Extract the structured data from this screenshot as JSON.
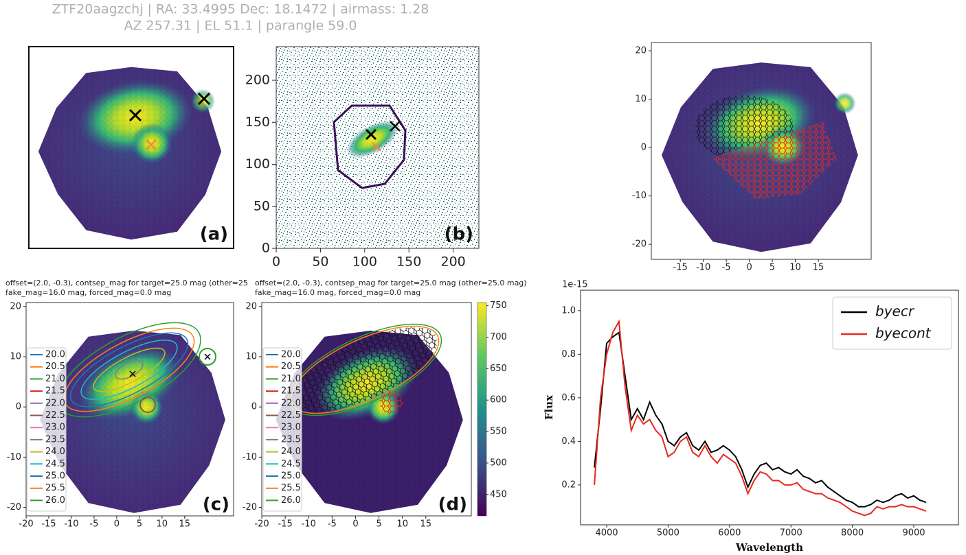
{
  "header": {
    "line1": "ZTF20aagzchj | RA: 33.4995 Dec: 18.1472 | airmass: 1.28",
    "line2": "AZ 257.31 | EL 51.1 | parangle 59.0"
  },
  "chart_data": [
    {
      "type": "image",
      "label": "(a)"
    },
    {
      "type": "image",
      "label": "(b)",
      "xlim": [
        0,
        229
      ],
      "ylim": [
        0,
        240
      ],
      "xticks": [
        0,
        50,
        100,
        150,
        200
      ],
      "yticks": [
        0,
        50,
        100,
        150,
        200
      ]
    },
    {
      "type": "contour",
      "label": "(c)",
      "title": "offset=(2.0, -0.3), contsep_mag for target=25.0 mag (other=25",
      "subtitle": "fake_mag=16.0 mag, forced_mag=0.0 mag",
      "xlim": [
        -20,
        25.8
      ],
      "ylim": [
        -21.7,
        20.8
      ],
      "xticks": [
        -20,
        -15,
        -10,
        -5,
        0,
        5,
        10,
        15
      ],
      "yticks": [
        -20,
        -10,
        0,
        10,
        20
      ],
      "levels": [
        "20.0",
        "20.5",
        "21.0",
        "21.5",
        "22.0",
        "22.5",
        "23.0",
        "23.5",
        "24.0",
        "24.5",
        "25.0",
        "25.5",
        "26.0"
      ],
      "level_colors": [
        "#1f77b4",
        "#ff7f0e",
        "#2ca02c",
        "#d62728",
        "#9467bd",
        "#8c564b",
        "#e377c2",
        "#7f7f7f",
        "#bcbd22",
        "#17becf",
        "#1f77b4",
        "#ff7f0e",
        "#2ca02c"
      ]
    },
    {
      "type": "contour",
      "label": "(d)",
      "title": "offset=(2.0, -0.3), contsep_mag for target=25.0 mag (other=25.0 mag)",
      "subtitle": "fake_mag=16.0 mag, forced_mag=0.0 mag",
      "xlim": [
        -20,
        24.7
      ],
      "ylim": [
        -21.7,
        20.8
      ],
      "xticks": [
        -20,
        -15,
        -10,
        -5,
        0,
        5,
        10,
        15
      ],
      "yticks": [
        -20,
        -10,
        0,
        10,
        20
      ],
      "levels": [
        "20.0",
        "20.5",
        "21.0",
        "21.5",
        "22.0",
        "22.5",
        "23.0",
        "23.5",
        "24.0",
        "24.5",
        "25.0",
        "25.5",
        "26.0"
      ],
      "level_colors": [
        "#1f77b4",
        "#ff7f0e",
        "#2ca02c",
        "#d62728",
        "#9467bd",
        "#8c564b",
        "#e377c2",
        "#7f7f7f",
        "#bcbd22",
        "#17becf",
        "#1f77b4",
        "#ff7f0e",
        "#2ca02c"
      ],
      "clim": [
        416,
        755
      ],
      "cticks": [
        450,
        500,
        550,
        600,
        650,
        700,
        750
      ]
    },
    {
      "type": "image",
      "xlim": [
        -21.3,
        26.5
      ],
      "ylim": [
        -23.1,
        21.7
      ],
      "xticks": [
        -15,
        -10,
        -5,
        0,
        5,
        10,
        15
      ],
      "yticks": [
        -20,
        -10,
        0,
        10,
        20
      ]
    },
    {
      "type": "line",
      "xlabel": "Wavelength",
      "ylabel": "Flux",
      "offset_label": "1e-15",
      "xlim": [
        3575,
        9727
      ],
      "ylim": [
        0.017,
        1.094
      ],
      "xticks": [
        4000,
        5000,
        6000,
        7000,
        8000,
        9000
      ],
      "yticks": [
        0.2,
        0.4,
        0.6,
        0.8,
        {
          "value": 1,
          "label": "1.0"
        }
      ],
      "x": [
        3800,
        3900,
        4000,
        4100,
        4200,
        4300,
        4400,
        4500,
        4600,
        4700,
        4800,
        4900,
        5000,
        5100,
        5200,
        5300,
        5400,
        5500,
        5600,
        5700,
        5800,
        5900,
        6000,
        6100,
        6200,
        6300,
        6400,
        6500,
        6600,
        6700,
        6800,
        6900,
        7000,
        7100,
        7200,
        7300,
        7400,
        7500,
        7600,
        7700,
        7800,
        7900,
        8000,
        8100,
        8200,
        8300,
        8400,
        8500,
        8600,
        8700,
        8800,
        8900,
        9000,
        9100,
        9200
      ],
      "series": [
        {
          "name": "byecr",
          "color": "#000000",
          "values": [
            0.28,
            0.55,
            0.85,
            0.88,
            0.9,
            0.7,
            0.5,
            0.55,
            0.5,
            0.58,
            0.52,
            0.48,
            0.4,
            0.38,
            0.42,
            0.44,
            0.38,
            0.36,
            0.4,
            0.35,
            0.36,
            0.38,
            0.36,
            0.33,
            0.27,
            0.19,
            0.25,
            0.29,
            0.3,
            0.27,
            0.28,
            0.26,
            0.25,
            0.27,
            0.24,
            0.23,
            0.21,
            0.22,
            0.19,
            0.17,
            0.15,
            0.13,
            0.12,
            0.1,
            0.1,
            0.11,
            0.13,
            0.12,
            0.13,
            0.15,
            0.16,
            0.14,
            0.15,
            0.13,
            0.12
          ]
        },
        {
          "name": "byecont",
          "color": "#e8281e",
          "values": [
            0.2,
            0.6,
            0.8,
            0.9,
            0.95,
            0.65,
            0.45,
            0.52,
            0.48,
            0.5,
            0.45,
            0.42,
            0.33,
            0.35,
            0.4,
            0.42,
            0.35,
            0.33,
            0.38,
            0.33,
            0.3,
            0.34,
            0.32,
            0.3,
            0.24,
            0.16,
            0.22,
            0.26,
            0.25,
            0.22,
            0.22,
            0.2,
            0.2,
            0.21,
            0.18,
            0.17,
            0.16,
            0.16,
            0.14,
            0.13,
            0.12,
            0.1,
            0.08,
            0.07,
            0.06,
            0.07,
            0.1,
            0.09,
            0.1,
            0.1,
            0.11,
            0.1,
            0.1,
            0.09,
            0.08
          ]
        }
      ]
    }
  ]
}
